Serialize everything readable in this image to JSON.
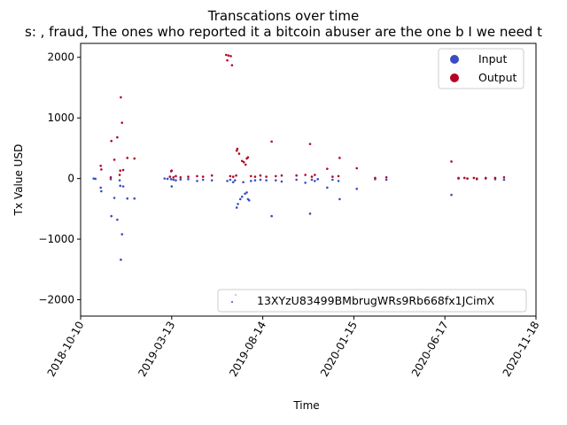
{
  "chart_data": {
    "type": "scatter",
    "title": "Transcations over time",
    "subtitle": "s: , fraud, The ones who reported it a bitcoin abuser are the one b I we need t",
    "xlabel": "Time",
    "ylabel": "Tx Value USD",
    "x_ticks": [
      "2018-10-10",
      "2019-03-13",
      "2019-08-14",
      "2020-01-15",
      "2020-06-17",
      "2020-11-18"
    ],
    "y_ticks": [
      -2000,
      -1000,
      0,
      1000,
      2000
    ],
    "xlim": [
      "2018-10-10",
      "2020-11-18"
    ],
    "ylim": [
      -2270,
      2230
    ],
    "legend_placement": "top-right",
    "address_legend": "13XYzU83499BMbrugWRs9Rb668fx1JCimX",
    "colors": {
      "input": "#3b4cc0",
      "output": "#b40426"
    },
    "series": [
      {
        "name": "Input",
        "points": [
          [
            "2018-11-01",
            0
          ],
          [
            "2018-11-04",
            -5
          ],
          [
            "2018-11-13",
            -150
          ],
          [
            "2018-11-14",
            -210
          ],
          [
            "2018-11-30",
            -10
          ],
          [
            "2018-12-01",
            -620
          ],
          [
            "2018-12-06",
            -320
          ],
          [
            "2018-12-11",
            -680
          ],
          [
            "2018-12-15",
            -30
          ],
          [
            "2018-12-16",
            -120
          ],
          [
            "2018-12-17",
            -1340
          ],
          [
            "2018-12-19",
            -920
          ],
          [
            "2018-12-21",
            -130
          ],
          [
            "2018-12-28",
            -330
          ],
          [
            "2019-01-09",
            -330
          ],
          [
            "2019-03-01",
            0
          ],
          [
            "2019-03-06",
            -5
          ],
          [
            "2019-03-12",
            -10
          ],
          [
            "2019-03-13",
            -130
          ],
          [
            "2019-03-16",
            -20
          ],
          [
            "2019-03-20",
            -30
          ],
          [
            "2019-03-28",
            -15
          ],
          [
            "2019-04-10",
            -10
          ],
          [
            "2019-04-25",
            -40
          ],
          [
            "2019-05-05",
            -20
          ],
          [
            "2019-05-20",
            -30
          ],
          [
            "2019-06-15",
            -40
          ],
          [
            "2019-06-20",
            -20
          ],
          [
            "2019-06-25",
            -60
          ],
          [
            "2019-06-28",
            -30
          ],
          [
            "2019-07-01",
            -480
          ],
          [
            "2019-07-03",
            -420
          ],
          [
            "2019-07-07",
            -340
          ],
          [
            "2019-07-10",
            -300
          ],
          [
            "2019-07-12",
            -60
          ],
          [
            "2019-07-15",
            -250
          ],
          [
            "2019-07-18",
            -230
          ],
          [
            "2019-07-20",
            -340
          ],
          [
            "2019-07-22",
            -360
          ],
          [
            "2019-07-25",
            -40
          ],
          [
            "2019-08-01",
            -30
          ],
          [
            "2019-08-10",
            -20
          ],
          [
            "2019-08-20",
            -30
          ],
          [
            "2019-08-29",
            -620
          ],
          [
            "2019-09-05",
            -30
          ],
          [
            "2019-09-15",
            -50
          ],
          [
            "2019-10-10",
            -20
          ],
          [
            "2019-10-25",
            -70
          ],
          [
            "2019-11-02",
            -580
          ],
          [
            "2019-11-05",
            -20
          ],
          [
            "2019-11-10",
            -40
          ],
          [
            "2019-11-15",
            -10
          ],
          [
            "2019-12-01",
            -150
          ],
          [
            "2019-12-10",
            -20
          ],
          [
            "2019-12-20",
            -40
          ],
          [
            "2019-12-22",
            -340
          ],
          [
            "2020-01-20",
            -170
          ],
          [
            "2020-02-20",
            -10
          ],
          [
            "2020-03-10",
            -20
          ],
          [
            "2020-06-28",
            -270
          ],
          [
            "2020-07-10",
            0
          ],
          [
            "2020-07-25",
            0
          ],
          [
            "2020-08-10",
            -10
          ],
          [
            "2020-08-25",
            0
          ],
          [
            "2020-09-10",
            -10
          ],
          [
            "2020-09-25",
            -20
          ]
        ]
      },
      {
        "name": "Output",
        "points": [
          [
            "2018-11-13",
            210
          ],
          [
            "2018-11-14",
            150
          ],
          [
            "2018-11-30",
            20
          ],
          [
            "2018-12-01",
            620
          ],
          [
            "2018-12-06",
            310
          ],
          [
            "2018-12-11",
            680
          ],
          [
            "2018-12-15",
            60
          ],
          [
            "2018-12-16",
            130
          ],
          [
            "2018-12-17",
            1340
          ],
          [
            "2018-12-19",
            920
          ],
          [
            "2018-12-21",
            140
          ],
          [
            "2018-12-28",
            340
          ],
          [
            "2019-01-09",
            330
          ],
          [
            "2019-03-10",
            30
          ],
          [
            "2019-03-12",
            120
          ],
          [
            "2019-03-13",
            130
          ],
          [
            "2019-03-16",
            20
          ],
          [
            "2019-03-20",
            40
          ],
          [
            "2019-03-28",
            20
          ],
          [
            "2019-04-10",
            30
          ],
          [
            "2019-04-25",
            40
          ],
          [
            "2019-05-05",
            30
          ],
          [
            "2019-05-20",
            50
          ],
          [
            "2019-06-13",
            2040
          ],
          [
            "2019-06-17",
            2030
          ],
          [
            "2019-06-15",
            1950
          ],
          [
            "2019-06-21",
            2020
          ],
          [
            "2019-06-23",
            1870
          ],
          [
            "2019-06-20",
            40
          ],
          [
            "2019-06-25",
            30
          ],
          [
            "2019-06-30",
            50
          ],
          [
            "2019-07-01",
            460
          ],
          [
            "2019-07-02",
            490
          ],
          [
            "2019-07-05",
            410
          ],
          [
            "2019-07-10",
            290
          ],
          [
            "2019-07-13",
            270
          ],
          [
            "2019-07-16",
            230
          ],
          [
            "2019-07-18",
            330
          ],
          [
            "2019-07-20",
            350
          ],
          [
            "2019-07-25",
            40
          ],
          [
            "2019-08-01",
            30
          ],
          [
            "2019-08-10",
            50
          ],
          [
            "2019-08-20",
            30
          ],
          [
            "2019-08-29",
            610
          ],
          [
            "2019-09-05",
            40
          ],
          [
            "2019-09-15",
            50
          ],
          [
            "2019-10-10",
            50
          ],
          [
            "2019-10-25",
            60
          ],
          [
            "2019-11-02",
            570
          ],
          [
            "2019-11-05",
            30
          ],
          [
            "2019-11-10",
            60
          ],
          [
            "2019-12-01",
            160
          ],
          [
            "2019-12-10",
            30
          ],
          [
            "2019-12-20",
            40
          ],
          [
            "2019-12-22",
            340
          ],
          [
            "2020-01-20",
            170
          ],
          [
            "2020-02-20",
            10
          ],
          [
            "2020-03-10",
            20
          ],
          [
            "2020-06-28",
            280
          ],
          [
            "2020-07-10",
            10
          ],
          [
            "2020-07-20",
            10
          ],
          [
            "2020-07-25",
            0
          ],
          [
            "2020-08-05",
            10
          ],
          [
            "2020-08-10",
            0
          ],
          [
            "2020-08-25",
            10
          ],
          [
            "2020-09-10",
            10
          ],
          [
            "2020-09-25",
            20
          ]
        ]
      }
    ]
  }
}
